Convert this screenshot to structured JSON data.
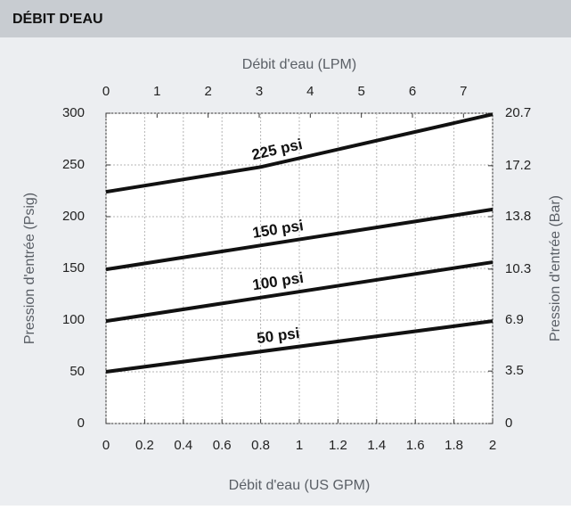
{
  "chart_data": {
    "type": "line",
    "title": "DÉBIT D'EAU",
    "x_label": "Débit d'eau (US GPM)",
    "x2_label": "Débit d'eau (LPM)",
    "y_label": "Pression d'entrée (Psig)",
    "y2_label": "Pression d'entrée (Bar)",
    "xlim": [
      0,
      2
    ],
    "xticks": [
      0,
      0.2,
      0.4,
      0.6,
      0.8,
      1,
      1.2,
      1.4,
      1.6,
      1.8,
      2
    ],
    "x2lim": [
      0,
      7.57
    ],
    "x2ticks": [
      0,
      1,
      2,
      3,
      4,
      5,
      6,
      7
    ],
    "ylim": [
      0,
      300
    ],
    "yticks": [
      0,
      50,
      100,
      150,
      200,
      250,
      300
    ],
    "y2lim": [
      0,
      20.7
    ],
    "y2ticks": [
      0,
      3.5,
      6.9,
      10.3,
      13.8,
      17.2,
      20.7
    ],
    "grid": true,
    "series": [
      {
        "name": "225 psi",
        "color": "#111111",
        "x": [
          0,
          0.8,
          2
        ],
        "values": [
          224,
          248,
          299
        ]
      },
      {
        "name": "150 psi",
        "color": "#111111",
        "x": [
          0,
          2
        ],
        "values": [
          149,
          207
        ]
      },
      {
        "name": "100 psi",
        "color": "#111111",
        "x": [
          0,
          2
        ],
        "values": [
          99,
          156
        ]
      },
      {
        "name": "50 psi",
        "color": "#111111",
        "x": [
          0,
          2
        ],
        "values": [
          50,
          99
        ]
      }
    ]
  }
}
